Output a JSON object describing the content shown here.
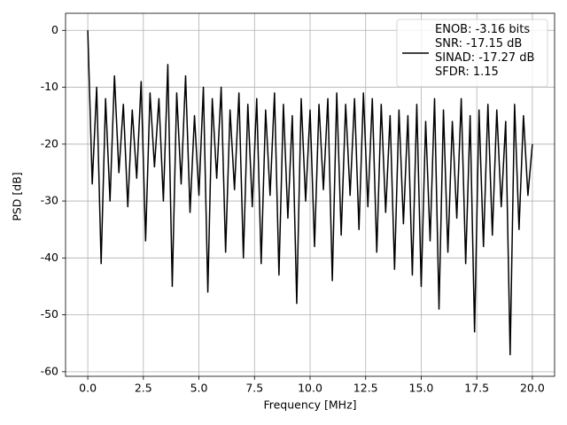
{
  "chart_data": {
    "type": "line",
    "xlabel": "Frequency [MHz]",
    "ylabel": "PSD [dB]",
    "x": [
      0,
      0.2,
      0.4,
      0.6,
      0.8,
      1,
      1.2,
      1.4,
      1.6,
      1.8,
      2,
      2.2,
      2.4,
      2.6,
      2.8,
      3,
      3.2,
      3.4,
      3.6,
      3.8,
      4,
      4.2,
      4.4,
      4.6,
      4.8,
      5,
      5.2,
      5.4,
      5.6,
      5.8,
      6,
      6.2,
      6.4,
      6.6,
      6.8,
      7,
      7.2,
      7.4,
      7.6,
      7.8,
      8,
      8.2,
      8.4,
      8.6,
      8.8,
      9,
      9.2,
      9.4,
      9.6,
      9.8,
      10,
      10.2,
      10.4,
      10.6,
      10.8,
      11,
      11.2,
      11.4,
      11.6,
      11.8,
      12,
      12.2,
      12.4,
      12.6,
      12.8,
      13,
      13.2,
      13.4,
      13.6,
      13.8,
      14,
      14.2,
      14.4,
      14.6,
      14.8,
      15,
      15.2,
      15.4,
      15.6,
      15.8,
      16,
      16.2,
      16.4,
      16.6,
      16.8,
      17,
      17.2,
      17.4,
      17.6,
      17.8,
      18,
      18.2,
      18.4,
      18.6,
      18.8,
      19,
      19.2,
      19.4,
      19.6,
      19.8,
      20
    ],
    "series": [
      {
        "name": "ENOB: -3.16 bits\nSNR: -17.15 dB\nSINAD: -17.27 dB\nSFDR: 1.15",
        "color": "#000000",
        "values": [
          0,
          -27,
          -10,
          -41,
          -12,
          -30,
          -8,
          -25,
          -13,
          -31,
          -14,
          -26,
          -9,
          -37,
          -11,
          -24,
          -12,
          -30,
          -6,
          -45,
          -11,
          -27,
          -8,
          -32,
          -15,
          -29,
          -10,
          -46,
          -12,
          -26,
          -10,
          -39,
          -14,
          -28,
          -11,
          -40,
          -13,
          -31,
          -12,
          -41,
          -14,
          -29,
          -11,
          -43,
          -13,
          -33,
          -15,
          -48,
          -12,
          -30,
          -14,
          -38,
          -13,
          -28,
          -12,
          -44,
          -11,
          -36,
          -13,
          -29,
          -12,
          -35,
          -11,
          -31,
          -12,
          -39,
          -13,
          -32,
          -15,
          -42,
          -14,
          -34,
          -15,
          -43,
          -13,
          -45,
          -16,
          -37,
          -12,
          -49,
          -14,
          -39,
          -16,
          -33,
          -12,
          -41,
          -15,
          -53,
          -14,
          -38,
          -13,
          -36,
          -14,
          -31,
          -16,
          -57,
          -13,
          -35,
          -15,
          -29,
          -20
        ]
      }
    ],
    "xlim": [
      -1,
      21
    ],
    "ylim": [
      -60.8,
      3
    ],
    "xticks": [
      {
        "value": 0,
        "label": "0.0"
      },
      2.5,
      {
        "value": 5,
        "label": "5.0"
      },
      7.5,
      {
        "value": 10,
        "label": "10.0"
      },
      12.5,
      {
        "value": 15,
        "label": "15.0"
      },
      17.5,
      {
        "value": 20,
        "label": "20.0"
      }
    ],
    "yticks": [
      0,
      -10,
      -20,
      -30,
      -40,
      -50,
      -60
    ],
    "grid": true,
    "legend": "upper right"
  }
}
